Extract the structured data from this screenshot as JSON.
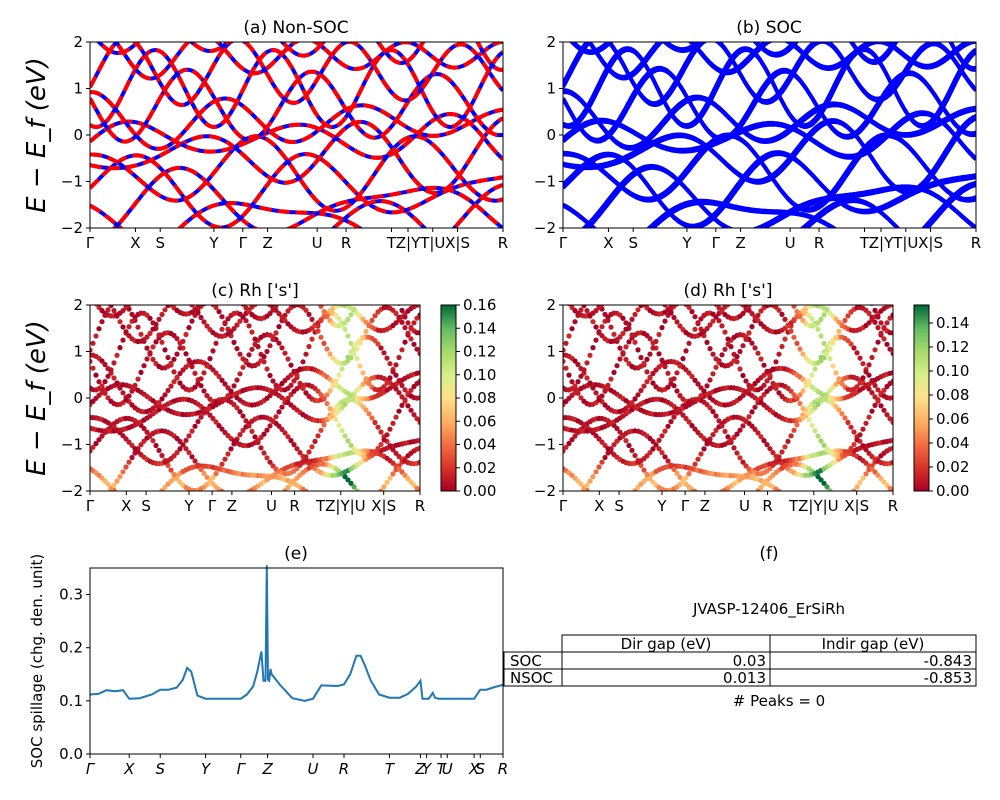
{
  "chart_data": [
    {
      "type": "line",
      "id": "a",
      "title": "(a) Non-SOC",
      "ylabel": "E − E_f (eV)",
      "ylim": [
        -2,
        2
      ],
      "yticks": [
        -2,
        -1,
        0,
        1,
        2
      ],
      "kpath": [
        "Γ",
        "X",
        "S",
        "Y",
        "Γ",
        "Z",
        "U",
        "R",
        "T",
        "Z|Y",
        "T|U",
        "X|S",
        "R"
      ],
      "kpath_positions": [
        0,
        0.11,
        0.17,
        0.3,
        0.37,
        0.43,
        0.55,
        0.62,
        0.73,
        0.77,
        0.83,
        0.89,
        1.0
      ],
      "series": [
        {
          "color": "#0000ff",
          "style": "solid"
        },
        {
          "color": "#ff0000",
          "style": "dashed"
        }
      ]
    },
    {
      "type": "line",
      "id": "b",
      "title": "(b) SOC",
      "ylim": [
        -2,
        2
      ],
      "yticks": [
        -2,
        -1,
        0,
        1,
        2
      ],
      "kpath": [
        "Γ",
        "X",
        "S",
        "Y",
        "Γ",
        "Z",
        "U",
        "R",
        "T",
        "Z|Y",
        "T|U",
        "X|S",
        "R"
      ],
      "kpath_positions": [
        0,
        0.11,
        0.17,
        0.3,
        0.37,
        0.43,
        0.55,
        0.62,
        0.73,
        0.77,
        0.83,
        0.89,
        1.0
      ],
      "series": [
        {
          "color": "#0000ff",
          "style": "solid"
        }
      ]
    },
    {
      "type": "scatter",
      "id": "c",
      "title": "(c)  Rh ['s']",
      "ylabel": "E − E_f (eV)",
      "ylim": [
        -2,
        2
      ],
      "yticks": [
        -2,
        -1,
        0,
        1,
        2
      ],
      "kpath": [
        "Γ",
        "X",
        "S",
        "Y",
        "Γ",
        "Z",
        "U",
        "R",
        "TZ|Y|U",
        "X|S",
        "R"
      ],
      "kpath_positions": [
        0,
        0.11,
        0.17,
        0.3,
        0.37,
        0.43,
        0.55,
        0.62,
        0.76,
        0.89,
        1.0
      ],
      "colorbar": {
        "min": 0.0,
        "max": 0.16,
        "ticks": [
          "0.00",
          "0.02",
          "0.04",
          "0.06",
          "0.08",
          "0.10",
          "0.12",
          "0.14",
          "0.16"
        ]
      }
    },
    {
      "type": "scatter",
      "id": "d",
      "title": "(d) Rh ['s']",
      "ylim": [
        -2,
        2
      ],
      "yticks": [
        -2,
        -1,
        0,
        1,
        2
      ],
      "kpath": [
        "Γ",
        "X",
        "S",
        "Y",
        "Γ",
        "Z",
        "U",
        "R",
        "TZ|Y|U",
        "X|S",
        "R"
      ],
      "kpath_positions": [
        0,
        0.11,
        0.17,
        0.3,
        0.37,
        0.43,
        0.55,
        0.62,
        0.76,
        0.89,
        1.0
      ],
      "colorbar": {
        "min": 0.0,
        "max": 0.155,
        "ticks": [
          "0.00",
          "0.02",
          "0.04",
          "0.06",
          "0.08",
          "0.10",
          "0.12",
          "0.14"
        ]
      }
    },
    {
      "type": "line",
      "id": "e",
      "title": "(e)",
      "ylabel": "SOC spillage (chg. den. unit)",
      "ylim": [
        0.0,
        0.35
      ],
      "yticks": [
        "0.0",
        "0.1",
        "0.2",
        "0.3"
      ],
      "xticks": [
        "Γ",
        "X",
        "S",
        "Y",
        "Γ",
        "Z",
        "U",
        "R",
        "T",
        "Z",
        "Y",
        "T",
        "U",
        "X",
        "S",
        "R"
      ],
      "xtick_positions": [
        0,
        0.095,
        0.17,
        0.28,
        0.365,
        0.43,
        0.54,
        0.615,
        0.725,
        0.8,
        0.815,
        0.85,
        0.865,
        0.93,
        0.945,
        1.0
      ],
      "series": [
        {
          "color": "#1f77b4",
          "x": [
            0,
            0.02,
            0.04,
            0.06,
            0.08,
            0.095,
            0.12,
            0.15,
            0.17,
            0.19,
            0.21,
            0.225,
            0.235,
            0.245,
            0.26,
            0.28,
            0.3,
            0.33,
            0.365,
            0.38,
            0.395,
            0.405,
            0.415,
            0.42,
            0.425,
            0.428,
            0.431,
            0.434,
            0.437,
            0.44,
            0.46,
            0.49,
            0.52,
            0.54,
            0.56,
            0.6,
            0.615,
            0.63,
            0.645,
            0.655,
            0.665,
            0.68,
            0.7,
            0.725,
            0.75,
            0.77,
            0.79,
            0.8,
            0.805,
            0.82,
            0.83,
            0.835,
            0.845,
            0.86,
            0.88,
            0.91,
            0.93,
            0.945,
            0.96,
            0.98,
            1.0
          ],
          "y": [
            0.112,
            0.113,
            0.12,
            0.118,
            0.12,
            0.104,
            0.105,
            0.112,
            0.121,
            0.121,
            0.125,
            0.14,
            0.162,
            0.155,
            0.11,
            0.104,
            0.104,
            0.104,
            0.104,
            0.112,
            0.127,
            0.155,
            0.193,
            0.138,
            0.138,
            0.355,
            0.14,
            0.138,
            0.16,
            0.15,
            0.13,
            0.105,
            0.1,
            0.104,
            0.129,
            0.128,
            0.131,
            0.15,
            0.185,
            0.185,
            0.168,
            0.138,
            0.112,
            0.106,
            0.106,
            0.113,
            0.127,
            0.138,
            0.104,
            0.104,
            0.115,
            0.106,
            0.104,
            0.104,
            0.104,
            0.104,
            0.104,
            0.121,
            0.121,
            0.126,
            0.13
          ]
        }
      ]
    },
    {
      "type": "table",
      "id": "f",
      "title": "(f)",
      "subtitle": "JVASP-12406_ErSiRh",
      "columns": [
        "Dir gap (eV)",
        "Indir gap (eV)"
      ],
      "rows": [
        {
          "label": "SOC",
          "values": [
            "0.03",
            "-0.843"
          ]
        },
        {
          "label": "NSOC",
          "values": [
            "0.013",
            "-0.853"
          ]
        }
      ],
      "note": "# Peaks = 0"
    }
  ]
}
